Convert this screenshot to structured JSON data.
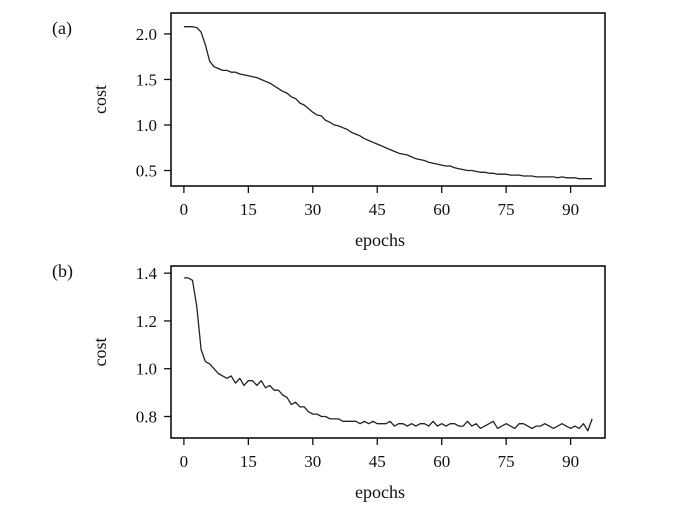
{
  "chart_data": [
    {
      "type": "line",
      "panel_label": "(a)",
      "xlabel": "epochs",
      "ylabel": "cost",
      "xlim": [
        -3,
        98
      ],
      "ylim": [
        0.33,
        2.23
      ],
      "xticks": [
        0,
        15,
        30,
        45,
        60,
        75,
        90
      ],
      "yticks": [
        0.5,
        1.0,
        1.5,
        2.0
      ],
      "ytick_labels": [
        "0.5",
        "1.0",
        "1.5",
        "2.0"
      ],
      "grid": false,
      "series": [
        {
          "x": [
            0,
            1,
            2,
            3,
            4,
            5,
            6,
            7,
            8,
            9,
            10,
            11,
            12,
            13,
            14,
            15,
            16,
            17,
            18,
            19,
            20,
            21,
            22,
            23,
            24,
            25,
            26,
            27,
            28,
            29,
            30,
            31,
            32,
            33,
            34,
            35,
            36,
            37,
            38,
            39,
            40,
            41,
            42,
            43,
            44,
            45,
            46,
            47,
            48,
            49,
            50,
            51,
            52,
            53,
            54,
            55,
            56,
            57,
            58,
            59,
            60,
            61,
            62,
            63,
            64,
            65,
            66,
            67,
            68,
            69,
            70,
            71,
            72,
            73,
            74,
            75,
            76,
            77,
            78,
            79,
            80,
            81,
            82,
            83,
            84,
            85,
            86,
            87,
            88,
            89,
            90,
            91,
            92,
            93,
            94,
            95
          ],
          "y": [
            2.08,
            2.08,
            2.08,
            2.07,
            2.02,
            1.88,
            1.7,
            1.64,
            1.62,
            1.6,
            1.6,
            1.58,
            1.58,
            1.56,
            1.55,
            1.54,
            1.53,
            1.52,
            1.5,
            1.48,
            1.46,
            1.43,
            1.4,
            1.37,
            1.35,
            1.31,
            1.29,
            1.24,
            1.22,
            1.18,
            1.14,
            1.11,
            1.1,
            1.05,
            1.03,
            1.0,
            0.99,
            0.97,
            0.95,
            0.92,
            0.9,
            0.88,
            0.85,
            0.83,
            0.81,
            0.79,
            0.77,
            0.75,
            0.73,
            0.71,
            0.69,
            0.68,
            0.67,
            0.65,
            0.63,
            0.62,
            0.61,
            0.59,
            0.58,
            0.57,
            0.56,
            0.55,
            0.55,
            0.53,
            0.52,
            0.51,
            0.5,
            0.5,
            0.49,
            0.48,
            0.48,
            0.47,
            0.47,
            0.46,
            0.46,
            0.46,
            0.45,
            0.45,
            0.45,
            0.44,
            0.44,
            0.44,
            0.43,
            0.43,
            0.43,
            0.43,
            0.43,
            0.42,
            0.43,
            0.42,
            0.42,
            0.42,
            0.41,
            0.41,
            0.41,
            0.41
          ]
        }
      ]
    },
    {
      "type": "line",
      "panel_label": "(b)",
      "xlabel": "epochs",
      "ylabel": "cost",
      "xlim": [
        -3,
        98
      ],
      "ylim": [
        0.71,
        1.43
      ],
      "xticks": [
        0,
        15,
        30,
        45,
        60,
        75,
        90
      ],
      "yticks": [
        0.8,
        1.0,
        1.2,
        1.4
      ],
      "ytick_labels": [
        "0.8",
        "1.0",
        "1.2",
        "1.4"
      ],
      "grid": false,
      "series": [
        {
          "x": [
            0,
            1,
            2,
            3,
            4,
            5,
            6,
            7,
            8,
            9,
            10,
            11,
            12,
            13,
            14,
            15,
            16,
            17,
            18,
            19,
            20,
            21,
            22,
            23,
            24,
            25,
            26,
            27,
            28,
            29,
            30,
            31,
            32,
            33,
            34,
            35,
            36,
            37,
            38,
            39,
            40,
            41,
            42,
            43,
            44,
            45,
            46,
            47,
            48,
            49,
            50,
            51,
            52,
            53,
            54,
            55,
            56,
            57,
            58,
            59,
            60,
            61,
            62,
            63,
            64,
            65,
            66,
            67,
            68,
            69,
            70,
            71,
            72,
            73,
            74,
            75,
            76,
            77,
            78,
            79,
            80,
            81,
            82,
            83,
            84,
            85,
            86,
            87,
            88,
            89,
            90,
            91,
            92,
            93,
            94,
            95
          ],
          "y": [
            1.38,
            1.38,
            1.37,
            1.26,
            1.08,
            1.03,
            1.02,
            1.0,
            0.98,
            0.97,
            0.96,
            0.97,
            0.94,
            0.96,
            0.93,
            0.95,
            0.95,
            0.93,
            0.95,
            0.92,
            0.93,
            0.91,
            0.91,
            0.89,
            0.88,
            0.85,
            0.86,
            0.84,
            0.84,
            0.82,
            0.81,
            0.81,
            0.8,
            0.8,
            0.79,
            0.79,
            0.79,
            0.78,
            0.78,
            0.78,
            0.78,
            0.77,
            0.78,
            0.77,
            0.78,
            0.77,
            0.77,
            0.77,
            0.78,
            0.76,
            0.77,
            0.77,
            0.76,
            0.77,
            0.76,
            0.77,
            0.77,
            0.76,
            0.78,
            0.76,
            0.77,
            0.76,
            0.77,
            0.77,
            0.76,
            0.76,
            0.78,
            0.76,
            0.77,
            0.75,
            0.76,
            0.77,
            0.78,
            0.75,
            0.76,
            0.77,
            0.76,
            0.75,
            0.77,
            0.77,
            0.76,
            0.75,
            0.76,
            0.76,
            0.77,
            0.76,
            0.75,
            0.76,
            0.77,
            0.76,
            0.75,
            0.76,
            0.75,
            0.77,
            0.74,
            0.79
          ]
        }
      ]
    }
  ]
}
